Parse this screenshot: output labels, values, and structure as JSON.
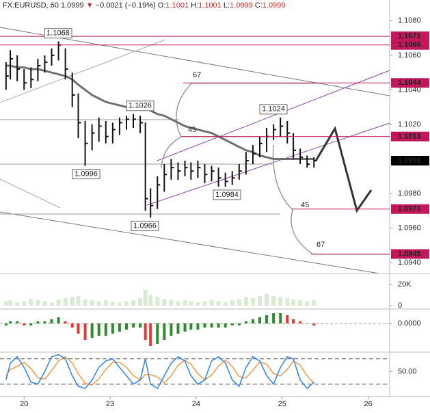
{
  "chart_data": {
    "type": "ohlc",
    "header": {
      "symbol": "FX:EURUSD, 60",
      "last": 1.0999,
      "arrow": "▼",
      "change": "−0.0021 (−0.19%)",
      "fields": [
        {
          "key": "O:",
          "value": 1.1001
        },
        {
          "key": "H:",
          "value": 1.1001
        },
        {
          "key": "L:",
          "value": 1.0999
        },
        {
          "key": "C:",
          "value": 1.0999
        }
      ]
    },
    "x": [
      -0.21,
      -0.16,
      -0.08,
      0,
      0.08,
      0.16,
      0.24,
      0.32,
      0.4,
      0.48,
      0.56,
      0.63,
      0.71,
      0.79,
      0.87,
      0.95,
      1.03,
      1.11,
      1.19,
      1.27,
      1.35,
      1.41,
      1.47,
      1.55,
      1.63,
      1.71,
      1.79,
      1.87,
      1.94,
      2.02,
      2.1,
      2.18,
      2.26,
      2.34,
      2.42,
      2.5,
      2.58,
      2.66,
      2.74,
      2.82,
      2.9,
      2.98,
      3.06,
      3.13,
      3.21,
      3.29,
      3.37
    ],
    "high": [
      1.1056,
      1.1063,
      1.106,
      1.1052,
      1.1053,
      1.1058,
      1.106,
      1.1064,
      1.1068,
      1.1064,
      1.105,
      1.1038,
      1.1022,
      1.102,
      1.1024,
      1.1022,
      1.1021,
      1.1024,
      1.1025,
      1.1026,
      1.1025,
      1.1021,
      1.0983,
      1.099,
      1.0997,
      1.1,
      1.0998,
      1.0999,
      1.0998,
      1.0999,
      1.0997,
      1.0996,
      1.0995,
      1.0992,
      1.0993,
      1.0997,
      1.1004,
      1.1008,
      1.1013,
      1.1018,
      1.102,
      1.1024,
      1.1022,
      1.1015,
      1.1006,
      1.1002,
      1.1001
    ],
    "low": [
      1.104,
      1.1046,
      1.1045,
      1.104,
      1.1041,
      1.1045,
      1.105,
      1.1054,
      1.1057,
      1.1046,
      1.103,
      1.1012,
      1.0996,
      1.1005,
      1.101,
      1.1009,
      1.1009,
      1.1014,
      1.1017,
      1.1018,
      1.1015,
      1.097,
      1.0966,
      1.0971,
      1.0981,
      1.0988,
      1.0988,
      1.099,
      1.0988,
      1.0989,
      1.0986,
      1.0987,
      1.0984,
      1.0984,
      1.0985,
      1.0988,
      1.0991,
      1.0997,
      1.1001,
      1.1004,
      1.1011,
      1.1013,
      1.1009,
      1.1,
      1.0997,
      1.0995,
      1.0995
    ],
    "close": [
      1.1048,
      1.1058,
      1.1052,
      1.1044,
      1.1046,
      1.1054,
      1.1056,
      1.106,
      1.1066,
      1.1052,
      1.1037,
      1.1021,
      1.1009,
      1.1015,
      1.1019,
      1.1013,
      1.1017,
      1.1021,
      1.1023,
      1.1023,
      1.1021,
      1.0977,
      1.0973,
      1.0985,
      1.0991,
      1.0995,
      1.0993,
      1.0995,
      1.0993,
      1.0995,
      1.0991,
      1.0993,
      1.0989,
      1.0987,
      1.0989,
      1.0993,
      1.0999,
      1.1003,
      1.1009,
      1.1013,
      1.1017,
      1.1019,
      1.1015,
      1.1005,
      1.1001,
      1.0997,
      1.0999
    ],
    "ma": [
      1.1054,
      1.1054,
      1.1053,
      1.1053,
      1.1052,
      1.1052,
      1.1051,
      1.105,
      1.1049,
      1.1048,
      1.1046,
      1.1043,
      1.104,
      1.1037,
      1.1035,
      1.1033,
      1.1032,
      1.1031,
      1.103,
      1.103,
      1.1029,
      1.1029,
      1.1028,
      1.1026,
      1.1025,
      1.1023,
      1.1021,
      1.1019,
      1.1018,
      1.1017,
      1.1016,
      1.1015,
      1.1013,
      1.1011,
      1.1009,
      1.1007,
      1.1005,
      1.1004,
      1.1002,
      1.1001,
      1.1,
      1.1,
      1.1,
      1.1,
      1.1,
      1.1,
      1.1
    ],
    "bar_color": "#111111",
    "ma_color": "#707070",
    "xlim": [
      -0.28,
      4.25
    ],
    "xticks": [
      {
        "value": 0,
        "label": "20"
      },
      {
        "value": 1,
        "label": "23"
      },
      {
        "value": 2,
        "label": "24"
      },
      {
        "value": 3,
        "label": "25"
      },
      {
        "value": 4,
        "label": "26"
      }
    ],
    "ylim": [
      1.09345,
      1.1092
    ],
    "yticks": [
      {
        "value": 1.108,
        "label": "1.1080"
      },
      {
        "value": 1.106,
        "label": "1.1060"
      },
      {
        "value": 1.104,
        "label": "1.1040"
      },
      {
        "value": 1.102,
        "label": "1.1020"
      },
      {
        "value": 1.1,
        "label": "1.1000"
      },
      {
        "value": 1.098,
        "label": "1.0980"
      },
      {
        "value": 1.096,
        "label": "1.0960"
      },
      {
        "value": 1.094,
        "label": "1.0940"
      }
    ],
    "levels": [
      {
        "value": 1.1071,
        "color": "#c2185b"
      },
      {
        "value": 1.1066,
        "color": "#c2185b"
      },
      {
        "value": 1.1044,
        "color": "#c2185b"
      },
      {
        "value": 1.1013,
        "color": "#c2185b"
      },
      {
        "value": 1.0999,
        "color": "#000000"
      },
      {
        "value": 1.0971,
        "color": "#c2185b"
      },
      {
        "value": 1.0945,
        "color": "#c2185b"
      }
    ],
    "annotations": [
      {
        "value": 1.1068,
        "label": "1.1068"
      },
      {
        "value": 1.0996,
        "label": "1.0996"
      },
      {
        "value": 1.1026,
        "label": "1.1026"
      },
      {
        "value": 1.0966,
        "label": "1.0966"
      },
      {
        "value": 1.0984,
        "label": "1.0984"
      },
      {
        "value": 1.1024,
        "label": "1.1024"
      }
    ],
    "fib_labels": [
      67,
      45,
      45,
      67
    ],
    "volume": {
      "values": [
        4000,
        5000,
        3000,
        4000,
        6000,
        5000,
        4000,
        3000,
        6000,
        7000,
        8000,
        9000,
        6000,
        5000,
        4000,
        5000,
        4000,
        3000,
        4000,
        5000,
        7000,
        15000,
        10000,
        8000,
        6000,
        5000,
        4000,
        5000,
        4000,
        3000,
        4000,
        5000,
        4000,
        3000,
        5000,
        6000,
        8000,
        7000,
        9000,
        11000,
        9000,
        8000,
        7000,
        6000,
        5000,
        4000,
        5000
      ],
      "color": "#d9ead3",
      "ylim": [
        -2000,
        29000
      ],
      "yticks": [
        0,
        {
          "value": 20000,
          "label": "20K"
        }
      ]
    },
    "macd": {
      "values": [
        -0.0001,
        0.0001,
        0.0001,
        -0.0001,
        -0.0001,
        0.0001,
        0.0001,
        0.0002,
        0.0003,
        0.0001,
        -0.0002,
        -0.0005,
        -0.0008,
        -0.0007,
        -0.0006,
        -0.0006,
        -0.0005,
        -0.0004,
        -0.0003,
        -0.0002,
        -0.0002,
        -0.0008,
        -0.0011,
        -0.001,
        -0.0008,
        -0.0006,
        -0.0005,
        -0.0004,
        -0.0003,
        -0.0003,
        -0.0002,
        -0.0002,
        -0.0002,
        -0.0002,
        -0.0001,
        -0.0001,
        0.0001,
        0.0002,
        0.0003,
        0.0004,
        0.0005,
        0.0005,
        0.0004,
        0.0002,
        0.0001,
        0,
        -0.0001
      ],
      "rising_color": "#2e8b2e",
      "falling_color": "#e53935",
      "ylim": [
        -0.0013,
        0.0006
      ],
      "yticks": [
        {
          "value": 0,
          "label": "0.0000"
        }
      ]
    },
    "stochastic": {
      "k": [
        30,
        70,
        85,
        60,
        25,
        20,
        50,
        85,
        90,
        80,
        40,
        15,
        10,
        30,
        60,
        75,
        80,
        60,
        40,
        20,
        30,
        80,
        20,
        10,
        40,
        70,
        85,
        75,
        40,
        20,
        30,
        75,
        85,
        70,
        30,
        15,
        60,
        85,
        75,
        40,
        20,
        60,
        85,
        80,
        30,
        10,
        25
      ],
      "d": [
        40,
        55,
        62,
        72,
        57,
        35,
        32,
        52,
        75,
        85,
        70,
        45,
        22,
        18,
        33,
        55,
        72,
        72,
        60,
        40,
        30,
        43,
        43,
        37,
        23,
        40,
        65,
        77,
        67,
        45,
        30,
        42,
        63,
        77,
        62,
        38,
        35,
        53,
        73,
        67,
        45,
        40,
        55,
        75,
        65,
        40,
        22
      ],
      "k_color": "#2f80ed",
      "d_color": "#f2994a",
      "ylim": [
        -6,
        91
      ],
      "yticks": [
        {
          "value": 50,
          "label": "50.00"
        }
      ],
      "levels": [
        80,
        20
      ]
    }
  }
}
